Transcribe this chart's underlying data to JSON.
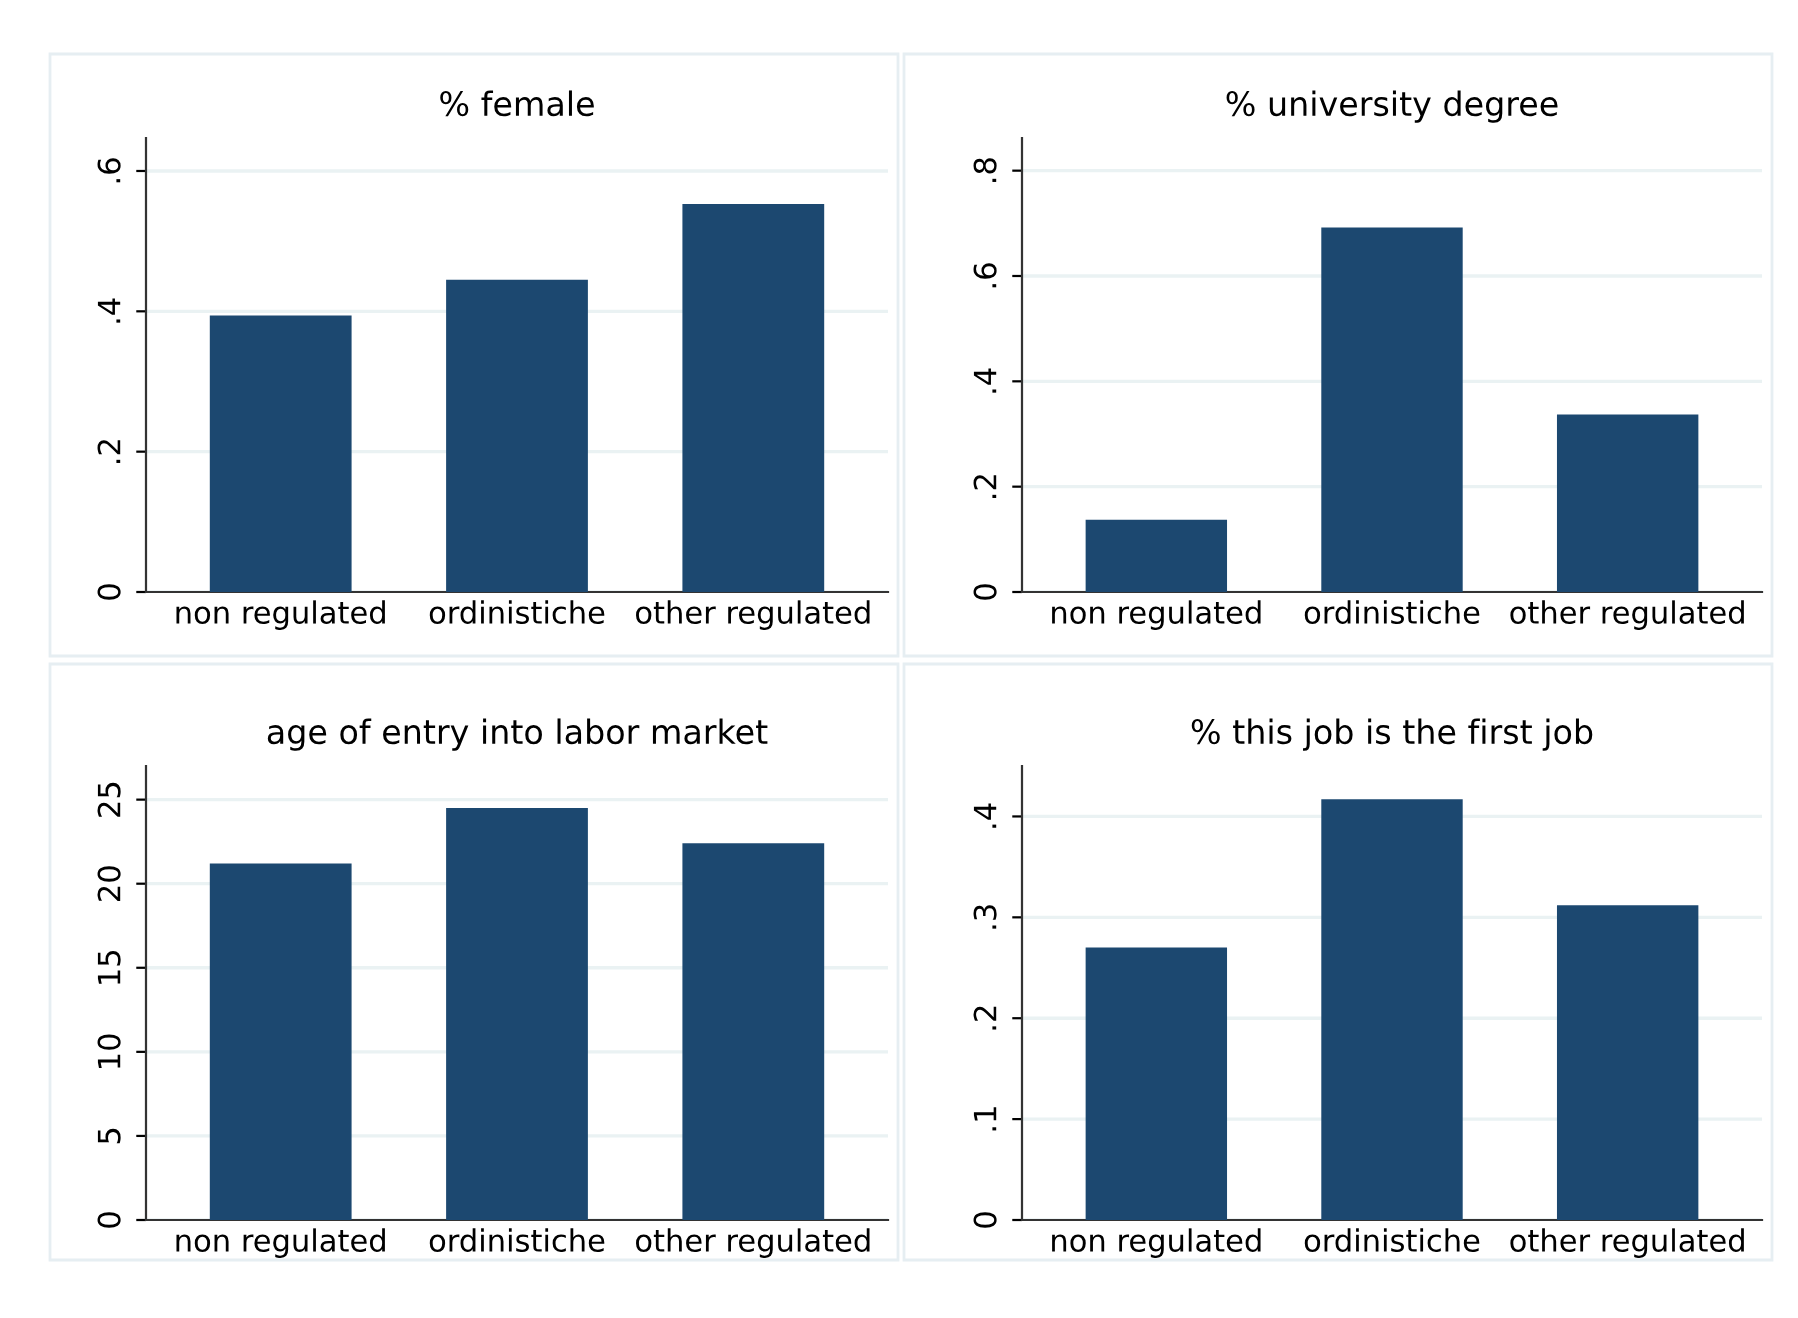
{
  "chart_data": [
    {
      "type": "bar",
      "title": "% female",
      "categories": [
        "non regulated",
        "ordinistiche",
        "other regulated"
      ],
      "values": [
        0.394,
        0.445,
        0.553
      ],
      "color": "#1c4870",
      "ylim": [
        0,
        0.647
      ],
      "yticks": [
        0,
        {
          "value": 0.2,
          "label": ".2"
        },
        {
          "value": 0.4,
          "label": ".4"
        },
        {
          "value": 0.6,
          "label": ".6"
        }
      ],
      "grid": "y"
    },
    {
      "type": "bar",
      "title": "% university degree",
      "categories": [
        "non regulated",
        "ordinistiche",
        "other regulated"
      ],
      "values": [
        0.137,
        0.692,
        0.337
      ],
      "color": "#1c4870",
      "ylim": [
        0,
        0.862
      ],
      "yticks": [
        0,
        {
          "value": 0.2,
          "label": ".2"
        },
        {
          "value": 0.4,
          "label": ".4"
        },
        {
          "value": 0.6,
          "label": ".6"
        },
        {
          "value": 0.8,
          "label": ".8"
        }
      ],
      "grid": "y"
    },
    {
      "type": "bar",
      "title": "age of entry into labor market",
      "categories": [
        "non regulated",
        "ordinistiche",
        "other regulated"
      ],
      "values": [
        21.2,
        24.5,
        22.4
      ],
      "color": "#1c4870",
      "ylim": [
        0,
        27
      ],
      "yticks": [
        0,
        5,
        10,
        15,
        20,
        25
      ],
      "grid": "y"
    },
    {
      "type": "bar",
      "title": "% this job is the first job",
      "categories": [
        "non regulated",
        "ordinistiche",
        "other regulated"
      ],
      "values": [
        0.27,
        0.417,
        0.312
      ],
      "color": "#1c4870",
      "ylim": [
        0,
        0.45
      ],
      "yticks": [
        0,
        {
          "value": 0.1,
          "label": ".1"
        },
        {
          "value": 0.2,
          "label": ".2"
        },
        {
          "value": 0.3,
          "label": ".3"
        },
        {
          "value": 0.4,
          "label": ".4"
        }
      ],
      "grid": "y"
    }
  ]
}
